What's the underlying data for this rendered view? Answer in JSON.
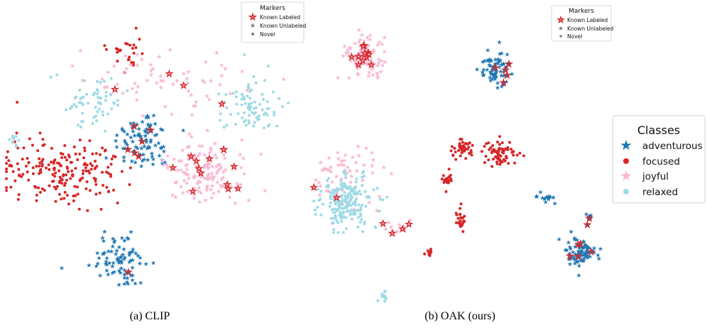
{
  "colors": {
    "adventurous": "#1f77b4",
    "focused": "#d62728",
    "joyful": "#f7b6d2",
    "relaxed": "#9edae5",
    "known_labeled": "#d62728",
    "known_unlabeled": "#7f7f7f",
    "novel": "#7f7f7f"
  },
  "classes_legend": {
    "title": "Classes",
    "items": [
      {
        "label": "adventurous",
        "class": "adventurous",
        "marker": "star-icon"
      },
      {
        "label": "focused",
        "class": "focused",
        "marker": "circle-icon"
      },
      {
        "label": "joyful",
        "class": "joyful",
        "marker": "star-icon"
      },
      {
        "label": "relaxed",
        "class": "relaxed",
        "marker": "circle-icon"
      }
    ]
  },
  "chart_data": [
    {
      "type": "scatter",
      "caption": "(a) CLIP",
      "legend": {
        "title": "Markers",
        "placement": "top-right",
        "items": [
          {
            "label": "Known Labeled",
            "marker": "outlined-star-icon"
          },
          {
            "label": "Known Unlabeled",
            "marker": "star-icon"
          },
          {
            "label": "Novel",
            "marker": "circle-icon"
          }
        ]
      },
      "clusters": [
        {
          "class": "adventurous",
          "marker": "star",
          "center": [
            0.48,
            0.45
          ],
          "spread": [
            0.09,
            0.09
          ],
          "n": 90
        },
        {
          "class": "adventurous",
          "marker": "star",
          "center": [
            0.4,
            0.85
          ],
          "spread": [
            0.09,
            0.1
          ],
          "n": 85
        },
        {
          "class": "focused",
          "marker": "circle",
          "center": [
            0.2,
            0.55
          ],
          "spread": [
            0.18,
            0.1
          ],
          "n": 200
        },
        {
          "class": "focused",
          "marker": "circle",
          "center": [
            0.42,
            0.15
          ],
          "spread": [
            0.07,
            0.05
          ],
          "n": 25
        },
        {
          "class": "joyful",
          "marker": "star",
          "center": [
            0.7,
            0.55
          ],
          "spread": [
            0.12,
            0.09
          ],
          "n": 150
        },
        {
          "class": "joyful",
          "marker": "star",
          "center": [
            0.55,
            0.25
          ],
          "spread": [
            0.25,
            0.1
          ],
          "n": 70
        },
        {
          "class": "relaxed",
          "marker": "circle",
          "center": [
            0.85,
            0.33
          ],
          "spread": [
            0.08,
            0.08
          ],
          "n": 80
        },
        {
          "class": "relaxed",
          "marker": "circle",
          "center": [
            0.3,
            0.32
          ],
          "spread": [
            0.12,
            0.08
          ],
          "n": 60
        },
        {
          "class": "relaxed",
          "marker": "circle",
          "center": [
            0.04,
            0.45
          ],
          "spread": [
            0.015,
            0.02
          ],
          "n": 10
        }
      ],
      "known_labeled_n": 25
    },
    {
      "type": "scatter",
      "caption": "(b) OAK (ours)",
      "legend": {
        "title": "Markers",
        "placement": "top-right",
        "items": [
          {
            "label": "Known Labeled",
            "marker": "outlined-star-icon"
          },
          {
            "label": "Known Unlabeled",
            "marker": "star-icon"
          },
          {
            "label": "Novel",
            "marker": "circle-icon"
          }
        ]
      },
      "clusters": [
        {
          "class": "joyful",
          "marker": "star",
          "center": [
            0.18,
            0.14
          ],
          "spread": [
            0.06,
            0.06
          ],
          "n": 100
        },
        {
          "class": "joyful",
          "marker": "star",
          "center": [
            0.12,
            0.55
          ],
          "spread": [
            0.1,
            0.1
          ],
          "n": 60
        },
        {
          "class": "joyful",
          "marker": "star",
          "center": [
            0.3,
            0.73
          ],
          "spread": [
            0.05,
            0.02
          ],
          "n": 15
        },
        {
          "class": "adventurous",
          "marker": "star",
          "center": [
            0.63,
            0.19
          ],
          "spread": [
            0.045,
            0.06
          ],
          "n": 75
        },
        {
          "class": "adventurous",
          "marker": "star",
          "center": [
            0.92,
            0.82
          ],
          "spread": [
            0.05,
            0.05
          ],
          "n": 85
        },
        {
          "class": "adventurous",
          "marker": "star",
          "center": [
            0.8,
            0.63
          ],
          "spread": [
            0.03,
            0.015
          ],
          "n": 15
        },
        {
          "class": "adventurous",
          "marker": "star",
          "center": [
            0.95,
            0.7
          ],
          "spread": [
            0.008,
            0.02
          ],
          "n": 8
        },
        {
          "class": "relaxed",
          "marker": "circle",
          "center": [
            0.12,
            0.64
          ],
          "spread": [
            0.08,
            0.09
          ],
          "n": 200
        },
        {
          "class": "relaxed",
          "marker": "circle",
          "center": [
            0.25,
            0.97
          ],
          "spread": [
            0.01,
            0.015
          ],
          "n": 14
        },
        {
          "class": "focused",
          "marker": "circle",
          "center": [
            0.52,
            0.47
          ],
          "spread": [
            0.04,
            0.03
          ],
          "n": 45
        },
        {
          "class": "focused",
          "marker": "circle",
          "center": [
            0.65,
            0.48
          ],
          "spread": [
            0.05,
            0.04
          ],
          "n": 70
        },
        {
          "class": "focused",
          "marker": "circle",
          "center": [
            0.47,
            0.57
          ],
          "spread": [
            0.02,
            0.025
          ],
          "n": 20
        },
        {
          "class": "focused",
          "marker": "circle",
          "center": [
            0.51,
            0.71
          ],
          "spread": [
            0.015,
            0.05
          ],
          "n": 28
        },
        {
          "class": "focused",
          "marker": "circle",
          "center": [
            0.41,
            0.82
          ],
          "spread": [
            0.015,
            0.012
          ],
          "n": 10
        }
      ],
      "known_labeled_n": 30
    }
  ]
}
